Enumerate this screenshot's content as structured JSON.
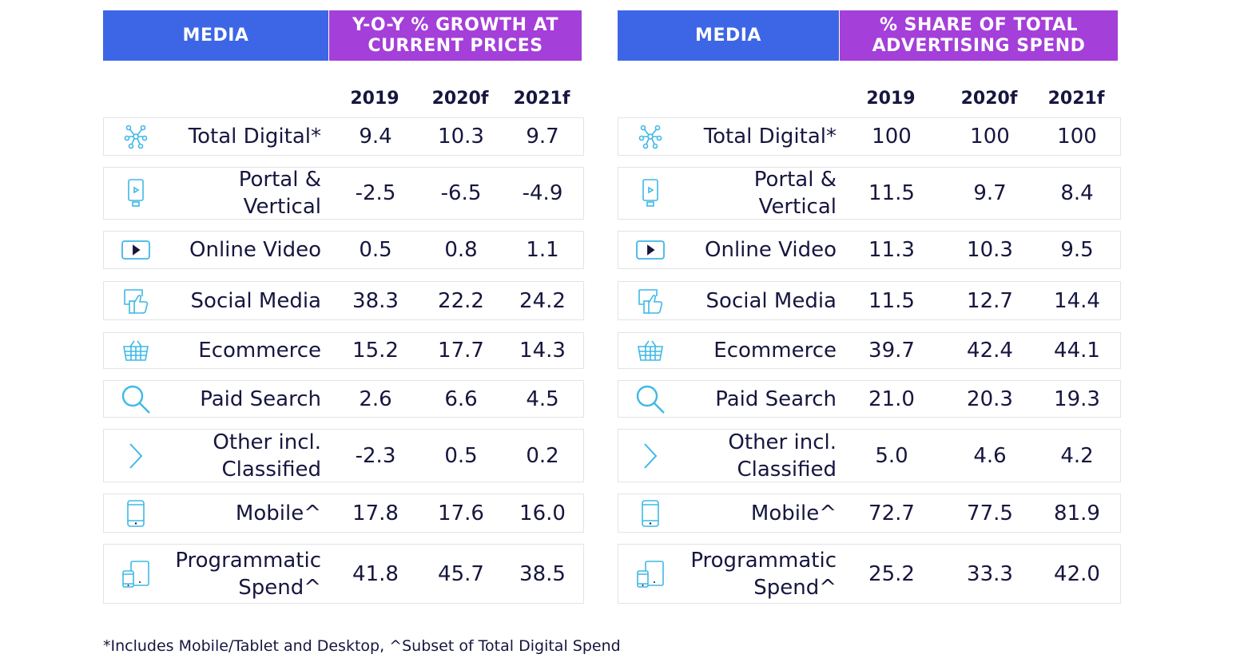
{
  "left_table": {
    "header_media": "MEDIA",
    "header_metric": "Y-O-Y % GROWTH AT CURRENT PRICES",
    "years": [
      "2019",
      "2020f",
      "2021f"
    ],
    "rows": [
      {
        "icon": "network-icon",
        "label": "Total Digital*",
        "values": [
          "9.4",
          "10.3",
          "9.7"
        ]
      },
      {
        "icon": "portal-device-icon",
        "label": "Portal & Vertical",
        "values": [
          "-2.5",
          "-6.5",
          "-4.9"
        ]
      },
      {
        "icon": "video-play-icon",
        "label": "Online Video",
        "values": [
          "0.5",
          "0.8",
          "1.1"
        ]
      },
      {
        "icon": "thumbs-up-icon",
        "label": "Social Media",
        "values": [
          "38.3",
          "22.2",
          "24.2"
        ]
      },
      {
        "icon": "shopping-basket-icon",
        "label": "Ecommerce",
        "values": [
          "15.2",
          "17.7",
          "14.3"
        ]
      },
      {
        "icon": "search-icon",
        "label": "Paid Search",
        "values": [
          "2.6",
          "6.6",
          "4.5"
        ]
      },
      {
        "icon": "chevron-right-icon",
        "label": "Other incl. Classified",
        "values": [
          "-2.3",
          "0.5",
          "0.2"
        ]
      },
      {
        "icon": "mobile-phone-icon",
        "label": "Mobile^",
        "values": [
          "17.8",
          "17.6",
          "16.0"
        ]
      },
      {
        "icon": "devices-icon",
        "label": "Programmatic Spend^",
        "values": [
          "41.8",
          "45.7",
          "38.5"
        ]
      }
    ]
  },
  "right_table": {
    "header_media": "MEDIA",
    "header_metric": "% SHARE OF TOTAL ADVERTISING SPEND",
    "years": [
      "2019",
      "2020f",
      "2021f"
    ],
    "rows": [
      {
        "icon": "network-icon",
        "label": "Total Digital*",
        "values": [
          "100",
          "100",
          "100"
        ]
      },
      {
        "icon": "portal-device-icon",
        "label": "Portal & Vertical",
        "values": [
          "11.5",
          "9.7",
          "8.4"
        ]
      },
      {
        "icon": "video-play-icon",
        "label": "Online Video",
        "values": [
          "11.3",
          "10.3",
          "9.5"
        ]
      },
      {
        "icon": "thumbs-up-icon",
        "label": "Social Media",
        "values": [
          "11.5",
          "12.7",
          "14.4"
        ]
      },
      {
        "icon": "shopping-basket-icon",
        "label": "Ecommerce",
        "values": [
          "39.7",
          "42.4",
          "44.1"
        ]
      },
      {
        "icon": "search-icon",
        "label": "Paid Search",
        "values": [
          "21.0",
          "20.3",
          "19.3"
        ]
      },
      {
        "icon": "chevron-right-icon",
        "label": "Other incl. Classified",
        "values": [
          "5.0",
          "4.6",
          "4.2"
        ]
      },
      {
        "icon": "mobile-phone-icon",
        "label": "Mobile^",
        "values": [
          "72.7",
          "77.5",
          "81.9"
        ]
      },
      {
        "icon": "devices-icon",
        "label": "Programmatic Spend^",
        "values": [
          "25.2",
          "33.3",
          "42.0"
        ]
      }
    ]
  },
  "footnote": "*Includes Mobile/Tablet and Desktop, ^Subset of Total Digital Spend",
  "colors": {
    "media_header": "#3d66e6",
    "metric_header": "#a43fd9",
    "icon": "#3fb8e6",
    "text": "#16163f"
  }
}
